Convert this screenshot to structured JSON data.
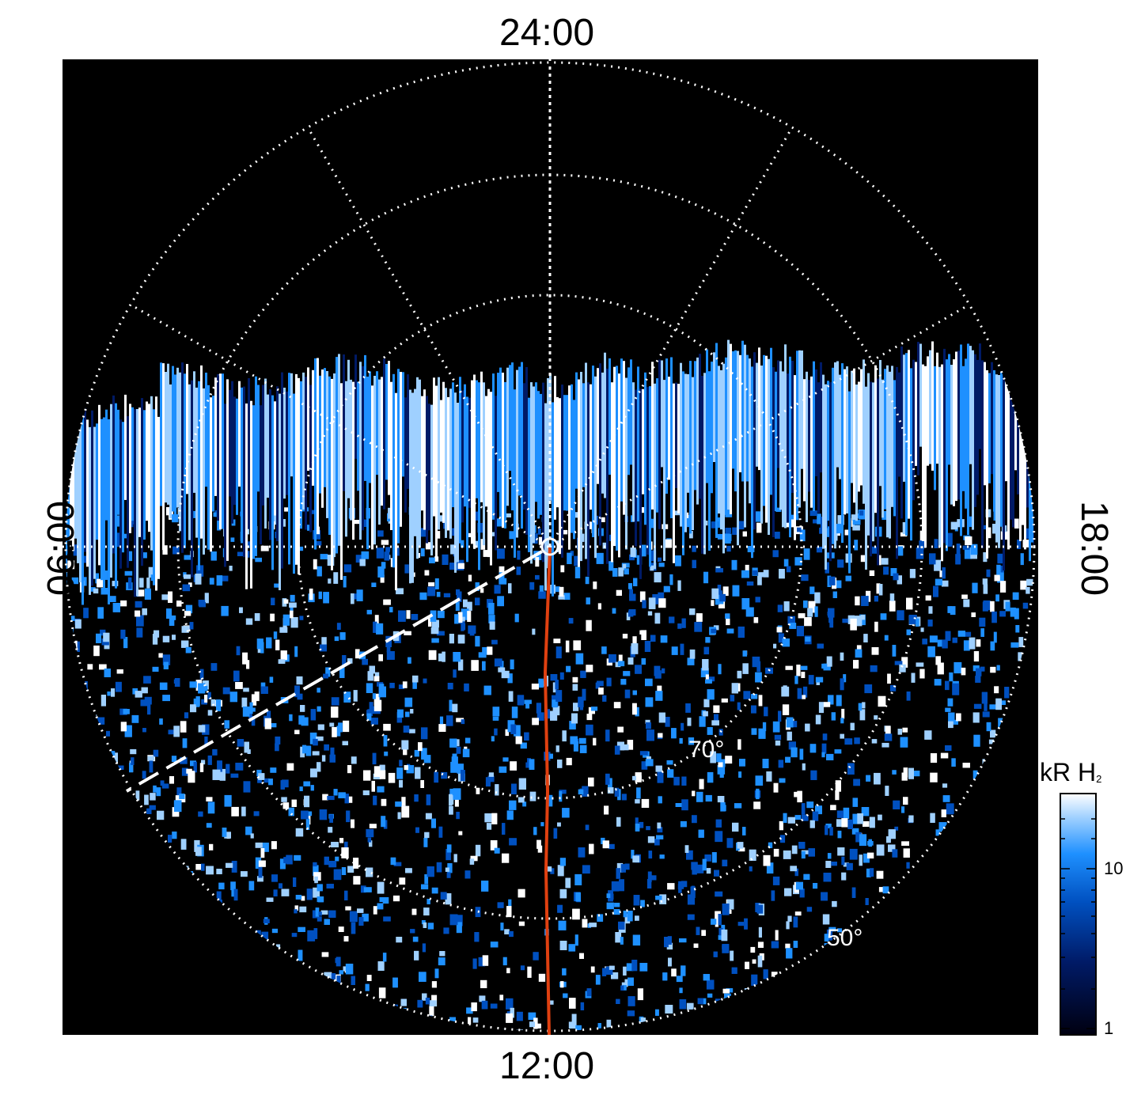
{
  "labels": {
    "top": "24:00",
    "bottom": "12:00",
    "left": "06:00",
    "right": "18:00"
  },
  "latitude_labels": {
    "inner": "70°",
    "outer": "50°"
  },
  "colorbar": {
    "unit": "kR H",
    "subscript": "2",
    "ticks": [
      "10",
      "1"
    ],
    "colors": [
      "#000010",
      "#001a66",
      "#0050c0",
      "#1e90ff",
      "#9fd0ff",
      "#ffffff"
    ]
  },
  "colors": {
    "background": "#000000",
    "grid": "#ffffff",
    "meridian": "#e04010",
    "aurora": "#1e90ff"
  }
}
